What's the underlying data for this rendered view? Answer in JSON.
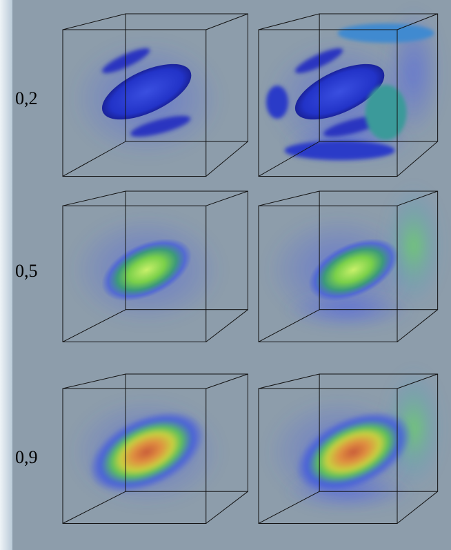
{
  "rows": [
    {
      "label": "0,2"
    },
    {
      "label": "0,5"
    },
    {
      "label": "0,9"
    }
  ]
}
